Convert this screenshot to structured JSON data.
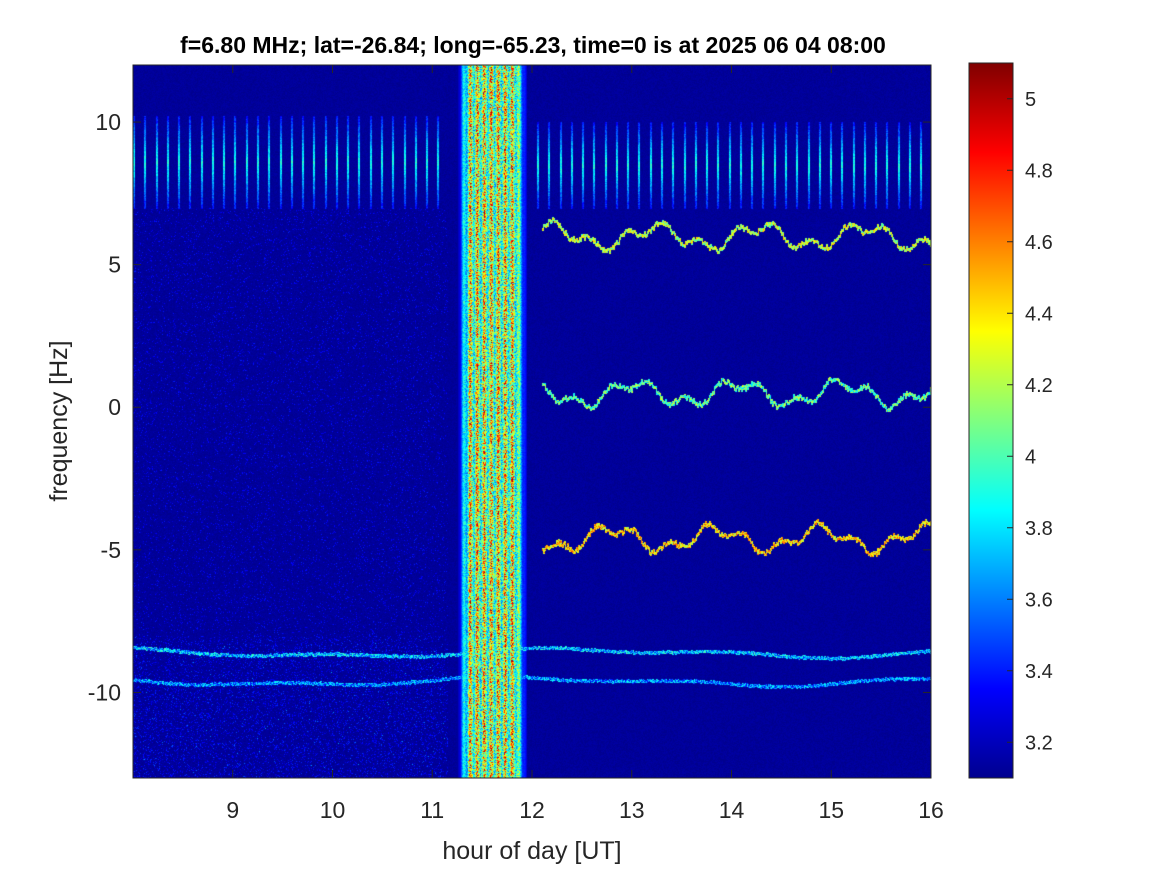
{
  "chart_data": {
    "type": "heatmap",
    "title": "f=6.80 MHz;  lat=-26.84; long=-65.23, time=0 is at 2025 06 04 08:00",
    "xlabel": "hour of day [UT]",
    "ylabel": "frequency [Hz]",
    "xlim": [
      8,
      16
    ],
    "ylim": [
      -13,
      12
    ],
    "x_ticks": [
      9,
      10,
      11,
      12,
      13,
      14,
      15,
      16
    ],
    "x_tick_labels": [
      "9",
      "10",
      "11",
      "12",
      "13",
      "14",
      "15",
      "16"
    ],
    "y_ticks": [
      -10,
      -5,
      0,
      5,
      10
    ],
    "y_tick_labels": [
      "-10",
      "-5",
      "0",
      "5",
      "10"
    ],
    "colormap": "jet",
    "colorbar": {
      "range": [
        3.1,
        5.1
      ],
      "ticks": [
        3.2,
        3.4,
        3.6,
        3.8,
        4.0,
        4.2,
        4.4,
        4.6,
        4.8,
        5.0
      ],
      "tick_labels": [
        "3.2",
        "3.4",
        "3.6",
        "3.8",
        "4",
        "4.2",
        "4.4",
        "4.6",
        "4.8",
        "5"
      ]
    },
    "background_level": 3.15,
    "features": [
      {
        "kind": "broadband_noise",
        "x_start": 11.25,
        "x_end": 11.95,
        "level": 4.5
      },
      {
        "kind": "periodic_pulses",
        "x_start": 8.0,
        "x_end": 11.1,
        "y_range": [
          7.0,
          10.2
        ],
        "period_hours": 0.113,
        "level": 3.9
      },
      {
        "kind": "periodic_pulses",
        "x_start": 12.05,
        "x_end": 15.95,
        "y_range": [
          7.0,
          10.0
        ],
        "period_hours": 0.113,
        "level": 3.9
      },
      {
        "kind": "doppler_trace",
        "x_start": 12.1,
        "x_end": 16.0,
        "mean_y": 6.0,
        "level": 4.1
      },
      {
        "kind": "doppler_trace",
        "x_start": 12.1,
        "x_end": 16.0,
        "mean_y": 0.5,
        "level": 3.9
      },
      {
        "kind": "doppler_trace",
        "x_start": 12.1,
        "x_end": 16.0,
        "mean_y": -4.6,
        "level": 4.3
      },
      {
        "kind": "faint_trace",
        "x_start": 8.0,
        "x_end": 16.0,
        "mean_y": -8.6,
        "level": 3.6
      },
      {
        "kind": "faint_trace",
        "x_start": 8.0,
        "x_end": 16.0,
        "mean_y": -9.6,
        "level": 3.5
      }
    ]
  }
}
